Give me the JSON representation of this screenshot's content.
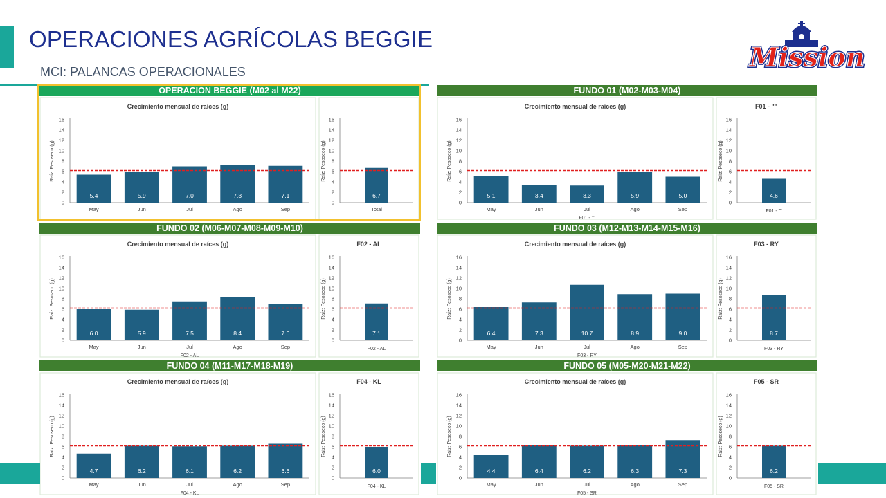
{
  "header": {
    "title": "OPERACIONES AGRÍCOLAS BEGGIE",
    "subtitle": "MCI: PALANCAS OPERACIONALES",
    "logo_text": "Mission"
  },
  "colors": {
    "bar": "#1f5f82",
    "header_green": "#3f7f2f",
    "header_green_main": "#1aa75a",
    "target_line": "#e02020",
    "accent_teal": "#1aa79a",
    "title_blue": "#1d2f8f",
    "highlight": "#f2c12e"
  },
  "chart_data": [
    {
      "panel": "OPERACIÓN BEGGIE (M02 al M22)",
      "type": "bar",
      "title": "Crecimiento mensual de raíces (g)",
      "ylabel": "Raíz: Pesoseco (g)",
      "xlabel": "",
      "ylim": [
        0,
        16
      ],
      "yticks": [
        0,
        2,
        4,
        6,
        8,
        10,
        12,
        14,
        16
      ],
      "categories": [
        "May",
        "Jun",
        "Jul",
        "Ago",
        "Sep"
      ],
      "values": [
        5.4,
        5.9,
        7.0,
        7.3,
        7.1
      ],
      "labels": [
        "5.4",
        "5.9",
        "7.0",
        "7.3",
        "7.1"
      ],
      "target": 6.2,
      "total": {
        "title": "",
        "categories": [
          "Total"
        ],
        "values": [
          6.7
        ],
        "labels": [
          "6.7"
        ],
        "xlabel": ""
      }
    },
    {
      "panel": "FUNDO 01 (M02-M03-M04)",
      "type": "bar",
      "title": "Crecimiento mensual de raíces (g)",
      "ylabel": "Raíz: Pesoseco (g)",
      "xlabel": "F01 - \"\"",
      "ylim": [
        0,
        16
      ],
      "yticks": [
        0,
        2,
        4,
        6,
        8,
        10,
        12,
        14,
        16
      ],
      "categories": [
        "May",
        "Jun",
        "Jul",
        "Ago",
        "Sep"
      ],
      "values": [
        5.1,
        3.4,
        3.3,
        5.9,
        5.0
      ],
      "labels": [
        "5.1",
        "3.4",
        "3.3",
        "5.9",
        "5.0"
      ],
      "target": 6.2,
      "total": {
        "title": "F01 - \"\"",
        "categories": [
          ""
        ],
        "values": [
          4.6
        ],
        "labels": [
          "4.6"
        ],
        "xlabel": "F01 - \"\""
      }
    },
    {
      "panel": "FUNDO 02 (M06-M07-M08-M09-M10)",
      "type": "bar",
      "title": "Crecimiento mensual de raíces (g)",
      "ylabel": "Raíz: Pesoseco (g)",
      "xlabel": "F02 - AL",
      "ylim": [
        0,
        16
      ],
      "yticks": [
        0,
        2,
        4,
        6,
        8,
        10,
        12,
        14,
        16
      ],
      "categories": [
        "May",
        "Jun",
        "Jul",
        "Ago",
        "Sep"
      ],
      "values": [
        6.0,
        5.9,
        7.5,
        8.4,
        7.0
      ],
      "labels": [
        "6.0",
        "5.9",
        "7.5",
        "8.4",
        "7.0"
      ],
      "target": 6.2,
      "total": {
        "title": "F02 - AL",
        "categories": [
          ""
        ],
        "values": [
          7.1
        ],
        "labels": [
          "7.1"
        ],
        "xlabel": "F02 - AL"
      }
    },
    {
      "panel": "FUNDO 03 (M12-M13-M14-M15-M16)",
      "type": "bar",
      "title": "Crecimiento mensual de raíces (g)",
      "ylabel": "Raíz: Pesoseco (g)",
      "xlabel": "F03 - RY",
      "ylim": [
        0,
        16
      ],
      "yticks": [
        0,
        2,
        4,
        6,
        8,
        10,
        12,
        14,
        16
      ],
      "categories": [
        "May",
        "Jun",
        "Jul",
        "Ago",
        "Sep"
      ],
      "values": [
        6.4,
        7.3,
        10.7,
        8.9,
        9.0
      ],
      "labels": [
        "6.4",
        "7.3",
        "10.7",
        "8.9",
        "9.0"
      ],
      "target": 6.2,
      "total": {
        "title": "F03 - RY",
        "categories": [
          ""
        ],
        "values": [
          8.7
        ],
        "labels": [
          "8.7"
        ],
        "xlabel": "F03 - RY"
      }
    },
    {
      "panel": "FUNDO 04 (M11-M17-M18-M19)",
      "type": "bar",
      "title": "Crecimiento mensual de raíces (g)",
      "ylabel": "Raíz: Pesoseco (g)",
      "xlabel": "F04 - KL",
      "ylim": [
        0,
        16
      ],
      "yticks": [
        0,
        2,
        4,
        6,
        8,
        10,
        12,
        14,
        16
      ],
      "categories": [
        "May",
        "Jun",
        "Jul",
        "Ago",
        "Sep"
      ],
      "values": [
        4.7,
        6.2,
        6.1,
        6.2,
        6.6
      ],
      "labels": [
        "4.7",
        "6.2",
        "6.1",
        "6.2",
        "6.6"
      ],
      "target": 6.2,
      "total": {
        "title": "F04 - KL",
        "categories": [
          ""
        ],
        "values": [
          6.0
        ],
        "labels": [
          "6.0"
        ],
        "xlabel": "F04 - KL"
      }
    },
    {
      "panel": "FUNDO 05 (M05-M20-M21-M22)",
      "type": "bar",
      "title": "Crecimiento mensual de raíces (g)",
      "ylabel": "Raíz: Pesoseco (g)",
      "xlabel": "F05 - SR",
      "ylim": [
        0,
        16
      ],
      "yticks": [
        0,
        2,
        4,
        6,
        8,
        10,
        12,
        14,
        16
      ],
      "categories": [
        "May",
        "Jun",
        "Jul",
        "Ago",
        "Sep"
      ],
      "values": [
        4.4,
        6.4,
        6.2,
        6.3,
        7.3
      ],
      "labels": [
        "4.4",
        "6.4",
        "6.2",
        "6.3",
        "7.3"
      ],
      "target": 6.2,
      "total": {
        "title": "F05 - SR",
        "categories": [
          ""
        ],
        "values": [
          6.2
        ],
        "labels": [
          "6.2"
        ],
        "xlabel": "F05 - SR"
      }
    }
  ]
}
